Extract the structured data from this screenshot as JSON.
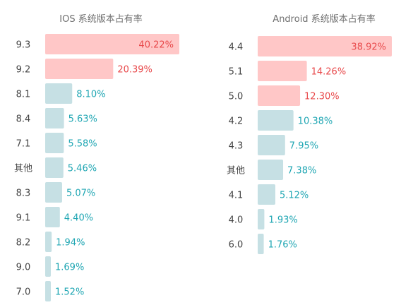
{
  "chart_data": [
    {
      "type": "bar",
      "orientation": "horizontal",
      "title": "IOS 系统版本占有率",
      "categories": [
        "9.3",
        "9.2",
        "8.1",
        "8.4",
        "7.1",
        "其他",
        "8.3",
        "9.1",
        "8.2",
        "9.0",
        "7.0"
      ],
      "values": [
        40.22,
        20.39,
        8.1,
        5.63,
        5.58,
        5.46,
        5.07,
        4.4,
        1.94,
        1.69,
        1.52
      ],
      "labels": [
        "40.22%",
        "20.39%",
        "8.10%",
        "5.63%",
        "5.58%",
        "5.46%",
        "5.07%",
        "4.40%",
        "1.94%",
        "1.69%",
        "1.52%"
      ],
      "unit": "%",
      "highlight_count": 2,
      "xlim": [
        0,
        40.22
      ],
      "grid": false
    },
    {
      "type": "bar",
      "orientation": "horizontal",
      "title": "Android 系统版本占有率",
      "categories": [
        "4.4",
        "5.1",
        "5.0",
        "4.2",
        "4.3",
        "其他",
        "4.1",
        "4.0",
        "6.0"
      ],
      "values": [
        38.92,
        14.26,
        12.3,
        10.38,
        7.95,
        7.38,
        5.12,
        1.93,
        1.76
      ],
      "labels": [
        "38.92%",
        "14.26%",
        "12.30%",
        "10.38%",
        "7.95%",
        "7.38%",
        "5.12%",
        "1.93%",
        "1.76%"
      ],
      "unit": "%",
      "highlight_count": 3,
      "xlim": [
        0,
        38.92
      ],
      "grid": false
    }
  ],
  "colors": {
    "highlight_bar": "#ffc7c7",
    "highlight_label": "#e8494b",
    "normal_bar": "#c6e0e4",
    "normal_label": "#1fa6b3",
    "inside_label": "#1fa6b3",
    "inside_highlight_label": "#e8494b",
    "title": "#6f6f6f",
    "category": "#444444"
  }
}
